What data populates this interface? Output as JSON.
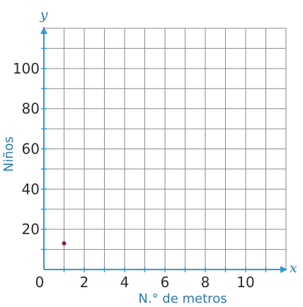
{
  "chart_data": {
    "type": "scatter",
    "title": "",
    "xlabel": "N.° de metros",
    "ylabel": "Niños",
    "x_axis_letter": "x",
    "y_axis_letter": "y",
    "xlim": [
      0,
      12
    ],
    "ylim": [
      0,
      120
    ],
    "x_ticks": [
      0,
      2,
      4,
      6,
      8,
      10
    ],
    "x_tick_labels": [
      "0",
      "2",
      "4",
      "6",
      "8",
      "10"
    ],
    "y_ticks": [
      20,
      40,
      60,
      80,
      100
    ],
    "y_tick_labels": [
      "20",
      "40",
      "60",
      "80",
      "100"
    ],
    "grid": true,
    "grid_step_x": 1,
    "grid_step_y": 10,
    "grid_color": "#8a8a8a",
    "axis_color": "#2e9bd6",
    "point_color": "#8c1a5c",
    "points": [
      {
        "x": 1,
        "y": 13
      }
    ]
  }
}
